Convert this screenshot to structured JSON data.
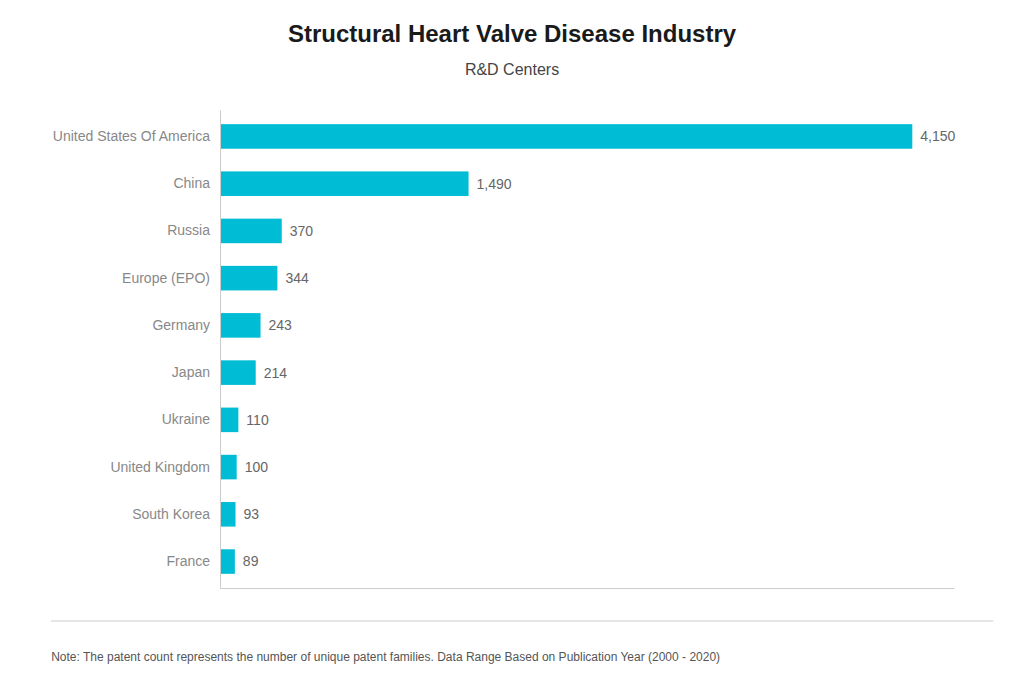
{
  "chart_data": {
    "type": "bar",
    "orientation": "horizontal",
    "title": "Structural Heart Valve Disease Industry",
    "subtitle": "R&D Centers",
    "categories": [
      "United States Of America",
      "China",
      "Russia",
      "Europe (EPO)",
      "Germany",
      "Japan",
      "Ukraine",
      "United Kingdom",
      "South Korea",
      "France"
    ],
    "values": [
      4150,
      1490,
      370,
      344,
      243,
      214,
      110,
      100,
      93,
      89
    ],
    "value_labels": [
      "4,150",
      "1,490",
      "370",
      "344",
      "243",
      "214",
      "110",
      "100",
      "93",
      "89"
    ],
    "data_labels": true,
    "color": "#00BCD4",
    "xlim": [
      0,
      4400
    ],
    "tick_labels": "y",
    "grid": false,
    "annotations": [
      "Note: The patent count represents the number of unique patent families. Data Range Based on Publication Year (2000 - 2020)"
    ]
  }
}
